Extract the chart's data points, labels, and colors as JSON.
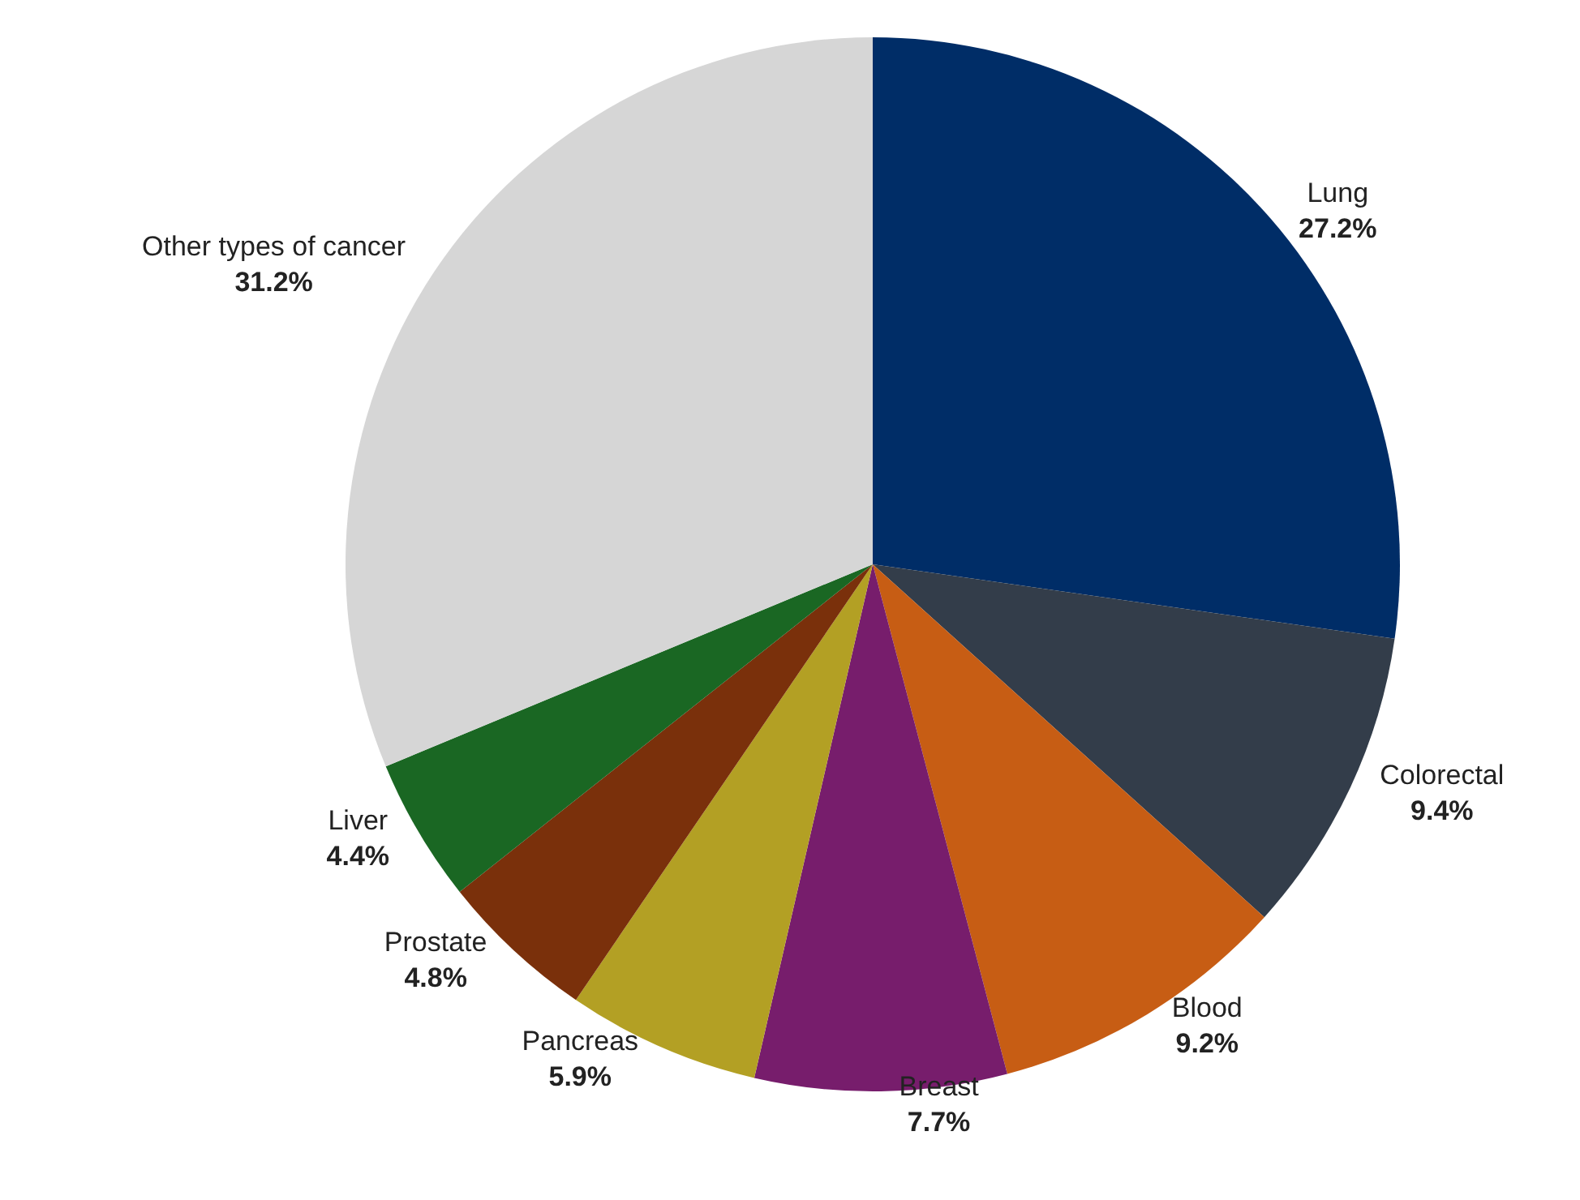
{
  "chart_data": {
    "type": "pie",
    "categories": [
      "Lung",
      "Colorectal",
      "Blood",
      "Breast",
      "Pancreas",
      "Prostate",
      "Liver",
      "Other types of cancer"
    ],
    "values": [
      27.2,
      9.4,
      9.2,
      7.7,
      5.9,
      4.8,
      4.4,
      31.2
    ],
    "value_labels": [
      "27.2%",
      "9.4%",
      "9.2%",
      "7.7%",
      "5.9%",
      "4.8%",
      "4.4%",
      "31.2%"
    ],
    "colors": [
      "#002d67",
      "#333d4a",
      "#c75d14",
      "#771d6c",
      "#b3a024",
      "#7a300b",
      "#1a6723",
      "#d6d6d6"
    ],
    "legend": false
  }
}
